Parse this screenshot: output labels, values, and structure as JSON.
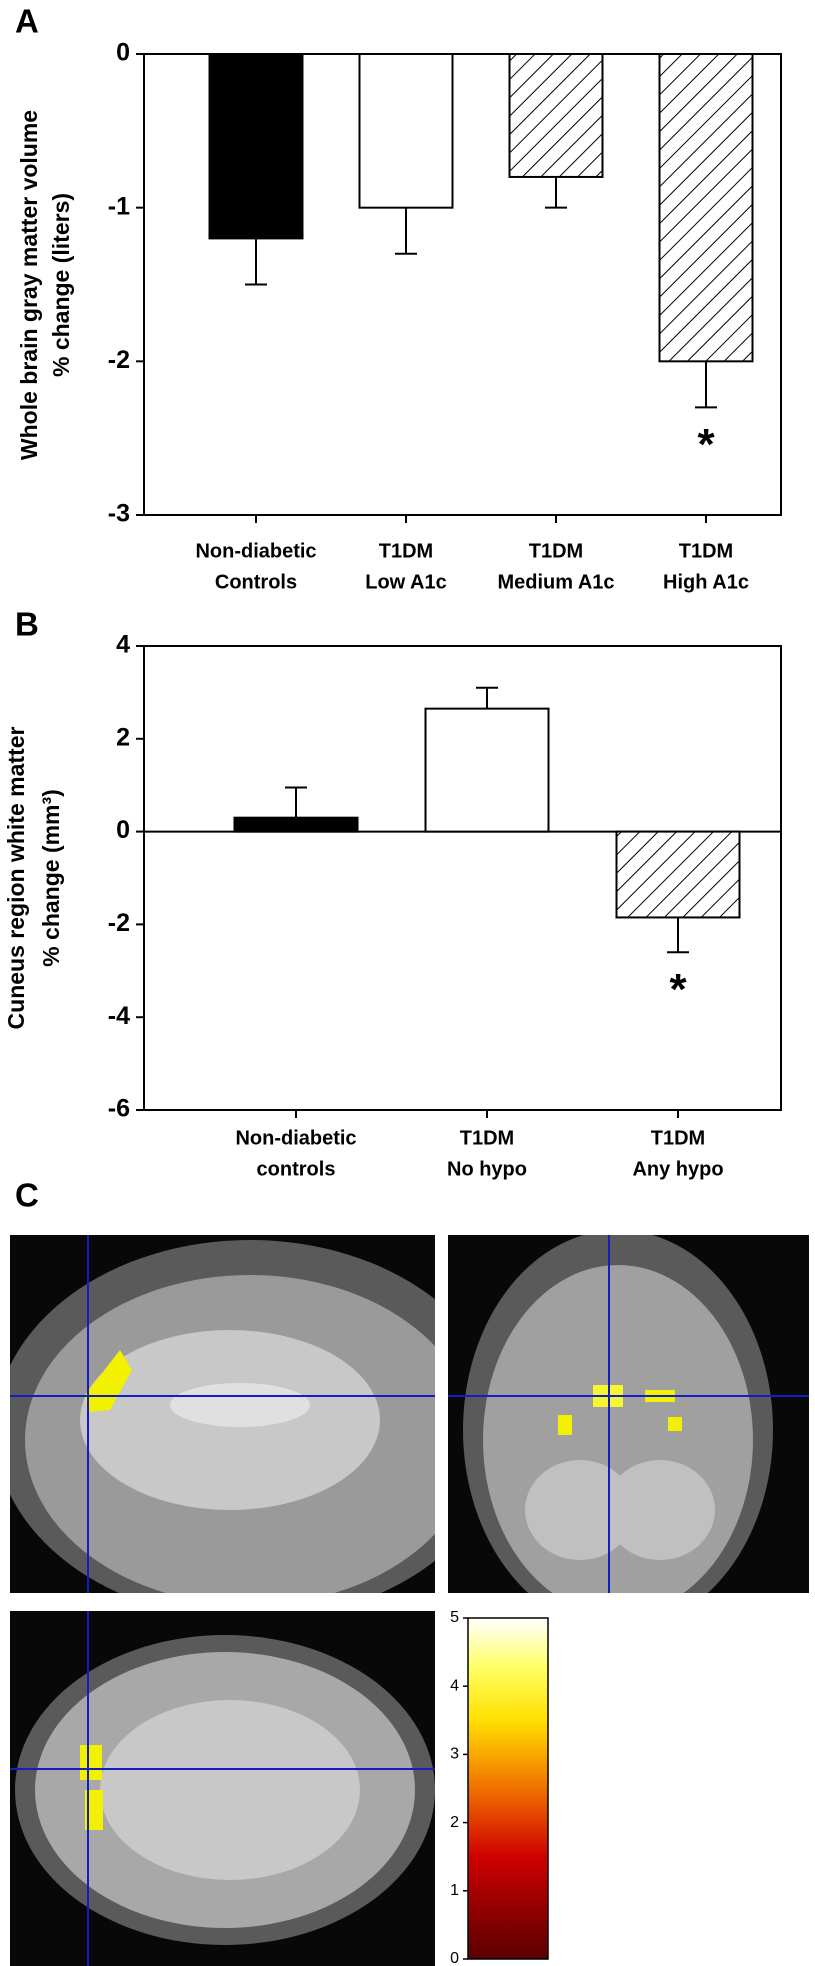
{
  "chart_data": [
    {
      "type": "bar",
      "panel": "A",
      "ylabel": [
        "Whole brain gray matter volume",
        "% change (liters)"
      ],
      "categories": [
        [
          "Non-diabetic",
          "Controls"
        ],
        [
          "T1DM",
          "Low A1c"
        ],
        [
          "T1DM",
          "Medium A1c"
        ],
        [
          "T1DM",
          "High A1c"
        ]
      ],
      "values": [
        -1.2,
        -1.0,
        -0.8,
        -2.0
      ],
      "errors": [
        0.3,
        0.3,
        0.2,
        0.3
      ],
      "fills": [
        "black",
        "white",
        "hatch",
        "hatch"
      ],
      "ylim": [
        -3,
        0
      ],
      "yticks": [
        0,
        -1,
        -2,
        -3
      ],
      "annotations": [
        {
          "x": 3,
          "text": "*"
        }
      ]
    },
    {
      "type": "bar",
      "panel": "B",
      "ylabel": [
        "Cuneus region white matter",
        "% change (mm³)"
      ],
      "categories": [
        [
          "Non-diabetic",
          "controls"
        ],
        [
          "T1DM",
          "No hypo"
        ],
        [
          "T1DM",
          "Any hypo"
        ]
      ],
      "values": [
        0.3,
        2.65,
        -1.85
      ],
      "errors": [
        0.65,
        0.45,
        0.75
      ],
      "fills": [
        "black",
        "white",
        "hatch"
      ],
      "ylim": [
        -6,
        4
      ],
      "yticks": [
        4,
        2,
        0,
        -2,
        -4,
        -6
      ],
      "annotations": [
        {
          "x": 2,
          "text": "*"
        }
      ]
    },
    {
      "type": "colorbar",
      "panel": "C",
      "ylim": [
        0,
        5
      ],
      "yticks": [
        0,
        1,
        2,
        3,
        4,
        5
      ]
    }
  ]
}
